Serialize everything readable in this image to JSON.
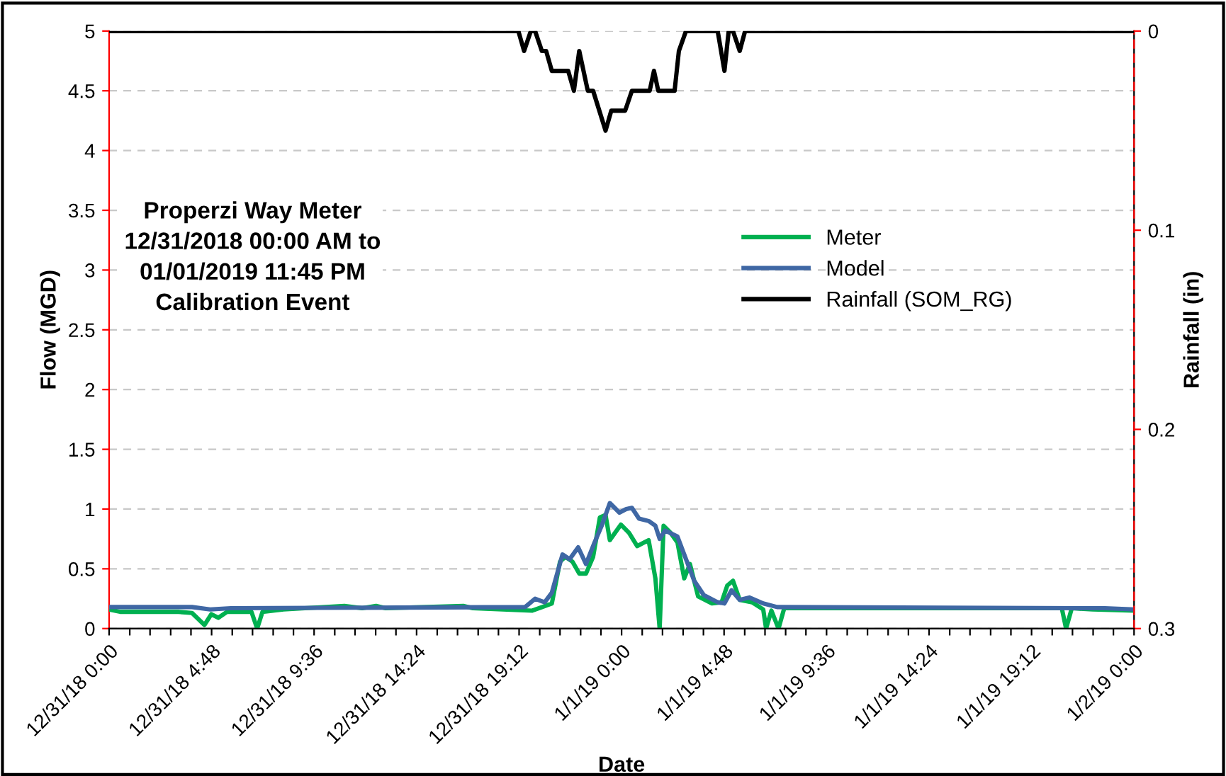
{
  "chart_data": {
    "type": "line",
    "xlabel": "Date",
    "ylabel": "Flow (MGD)",
    "y2label": "Rainfall (in)",
    "annotations": [
      "Properzi Way Meter\n12/31/2018 00:00 AM to\n01/01/2019 11:45 PM\nCalibration Event"
    ],
    "xlim": [
      "2018-12-31T00:00",
      "2019-01-02T00:00"
    ],
    "ylim": [
      0,
      5
    ],
    "yticks": [
      0,
      0.5,
      1,
      1.5,
      2,
      2.5,
      3,
      3.5,
      4,
      4.5,
      5
    ],
    "y2lim": [
      0.3,
      0
    ],
    "y2ticks": [
      0,
      0.1,
      0.2,
      0.3
    ],
    "xticks": [
      {
        "value": "2018-12-31T00:00",
        "label": "12/31/18 0:00"
      },
      {
        "value": "2018-12-31T00:58",
        "label": null
      },
      {
        "value": "2018-12-31T01:55",
        "label": null
      },
      {
        "value": "2018-12-31T02:53",
        "label": null
      },
      {
        "value": "2018-12-31T03:50",
        "label": null
      },
      {
        "value": "2018-12-31T04:48",
        "label": "12/31/18 4:48"
      },
      {
        "value": "2018-12-31T05:46",
        "label": null
      },
      {
        "value": "2018-12-31T06:43",
        "label": null
      },
      {
        "value": "2018-12-31T07:41",
        "label": null
      },
      {
        "value": "2018-12-31T08:38",
        "label": null
      },
      {
        "value": "2018-12-31T09:36",
        "label": "12/31/18 9:36"
      },
      {
        "value": "2018-12-31T10:34",
        "label": null
      },
      {
        "value": "2018-12-31T11:31",
        "label": null
      },
      {
        "value": "2018-12-31T12:29",
        "label": null
      },
      {
        "value": "2018-12-31T13:26",
        "label": null
      },
      {
        "value": "2018-12-31T14:24",
        "label": "12/31/18 14:24"
      },
      {
        "value": "2018-12-31T15:22",
        "label": null
      },
      {
        "value": "2018-12-31T16:19",
        "label": null
      },
      {
        "value": "2018-12-31T17:17",
        "label": null
      },
      {
        "value": "2018-12-31T18:14",
        "label": null
      },
      {
        "value": "2018-12-31T19:12",
        "label": "12/31/18 19:12"
      },
      {
        "value": "2018-12-31T20:10",
        "label": null
      },
      {
        "value": "2018-12-31T21:07",
        "label": null
      },
      {
        "value": "2018-12-31T22:05",
        "label": null
      },
      {
        "value": "2018-12-31T23:02",
        "label": null
      },
      {
        "value": "2019-01-01T00:00",
        "label": "1/1/19 0:00"
      },
      {
        "value": "2019-01-01T00:58",
        "label": null
      },
      {
        "value": "2019-01-01T01:55",
        "label": null
      },
      {
        "value": "2019-01-01T02:53",
        "label": null
      },
      {
        "value": "2019-01-01T03:50",
        "label": null
      },
      {
        "value": "2019-01-01T04:48",
        "label": "1/1/19 4:48"
      },
      {
        "value": "2019-01-01T05:46",
        "label": null
      },
      {
        "value": "2019-01-01T06:43",
        "label": null
      },
      {
        "value": "2019-01-01T07:41",
        "label": null
      },
      {
        "value": "2019-01-01T08:38",
        "label": null
      },
      {
        "value": "2019-01-01T09:36",
        "label": "1/1/19 9:36"
      },
      {
        "value": "2019-01-01T10:34",
        "label": null
      },
      {
        "value": "2019-01-01T11:31",
        "label": null
      },
      {
        "value": "2019-01-01T12:29",
        "label": null
      },
      {
        "value": "2019-01-01T13:26",
        "label": null
      },
      {
        "value": "2019-01-01T14:24",
        "label": "1/1/19 14:24"
      },
      {
        "value": "2019-01-01T15:22",
        "label": null
      },
      {
        "value": "2019-01-01T16:19",
        "label": null
      },
      {
        "value": "2019-01-01T17:17",
        "label": null
      },
      {
        "value": "2019-01-01T18:14",
        "label": null
      },
      {
        "value": "2019-01-01T19:12",
        "label": "1/1/19 19:12"
      },
      {
        "value": "2019-01-01T20:10",
        "label": null
      },
      {
        "value": "2019-01-01T21:07",
        "label": null
      },
      {
        "value": "2019-01-01T22:05",
        "label": null
      },
      {
        "value": "2019-01-01T23:02",
        "label": null
      },
      {
        "value": "2019-01-02T00:00",
        "label": "1/2/19 0:00"
      }
    ],
    "grid": "y",
    "legend": "right",
    "marker": "none",
    "line_style": "solid",
    "series": [
      {
        "name": "Meter",
        "color": "#00b050",
        "x": [
          "2018-12-31T00:00",
          "2018-12-31T00:31",
          "2018-12-31T03:14",
          "2018-12-31T03:53",
          "2018-12-31T04:28",
          "2018-12-31T04:47",
          "2018-12-31T05:07",
          "2018-12-31T05:31",
          "2018-12-31T06:40",
          "2018-12-31T06:56",
          "2018-12-31T07:11",
          "2018-12-31T08:10",
          "2018-12-31T11:01",
          "2018-12-31T11:51",
          "2018-12-31T12:30",
          "2018-12-31T12:57",
          "2018-12-31T16:35",
          "2018-12-31T17:02",
          "2018-12-31T19:49",
          "2018-12-31T20:44",
          "2018-12-31T21:07",
          "2018-12-31T21:22",
          "2018-12-31T21:42",
          "2018-12-31T22:01",
          "2018-12-31T22:20",
          "2018-12-31T22:40",
          "2018-12-31T22:59",
          "2018-12-31T23:15",
          "2018-12-31T23:27",
          "2018-12-31T23:58",
          "2019-01-01T00:21",
          "2019-01-01T00:44",
          "2019-01-01T01:16",
          "2019-01-01T01:35",
          "2019-01-01T01:47",
          "2019-01-01T01:58",
          "2019-01-01T02:18",
          "2019-01-01T02:37",
          "2019-01-01T02:56",
          "2019-01-01T03:12",
          "2019-01-01T03:35",
          "2019-01-01T04:14",
          "2019-01-01T04:41",
          "2019-01-01T04:57",
          "2019-01-01T05:13",
          "2019-01-01T05:32",
          "2019-01-01T06:07",
          "2019-01-01T06:38",
          "2019-01-01T06:46",
          "2019-01-01T07:01",
          "2019-01-01T07:21",
          "2019-01-01T07:37",
          "2019-01-01T20:37",
          "2019-01-01T20:49",
          "2019-01-01T21:05",
          "2019-01-01T22:03",
          "2019-01-02T00:00"
        ],
        "values": [
          0.16,
          0.14,
          0.14,
          0.13,
          0.03,
          0.12,
          0.09,
          0.14,
          0.14,
          0.0,
          0.14,
          0.16,
          0.19,
          0.17,
          0.19,
          0.17,
          0.19,
          0.17,
          0.15,
          0.21,
          0.56,
          0.6,
          0.56,
          0.46,
          0.46,
          0.6,
          0.93,
          0.95,
          0.74,
          0.87,
          0.8,
          0.69,
          0.74,
          0.42,
          0.0,
          0.86,
          0.8,
          0.72,
          0.42,
          0.54,
          0.27,
          0.21,
          0.22,
          0.36,
          0.4,
          0.24,
          0.22,
          0.16,
          0.0,
          0.15,
          0.0,
          0.17,
          0.17,
          0.0,
          0.17,
          0.16,
          0.15
        ]
      },
      {
        "name": "Model",
        "color": "#3f67a4",
        "x": [
          "2018-12-31T00:00",
          "2018-12-31T03:53",
          "2018-12-31T04:44",
          "2018-12-31T05:42",
          "2018-12-31T19:29",
          "2018-12-31T19:57",
          "2018-12-31T20:24",
          "2018-12-31T20:44",
          "2018-12-31T21:14",
          "2018-12-31T21:34",
          "2018-12-31T21:58",
          "2018-12-31T22:20",
          "2018-12-31T22:44",
          "2018-12-31T23:04",
          "2018-12-31T23:27",
          "2018-12-31T23:54",
          "2019-01-01T00:13",
          "2019-01-01T00:29",
          "2019-01-01T00:49",
          "2019-01-01T01:16",
          "2019-01-01T01:35",
          "2019-01-01T01:47",
          "2019-01-01T02:02",
          "2019-01-01T02:37",
          "2019-01-01T02:56",
          "2019-01-01T03:24",
          "2019-01-01T03:51",
          "2019-01-01T04:30",
          "2019-01-01T04:49",
          "2019-01-01T05:09",
          "2019-01-01T05:32",
          "2019-01-01T05:59",
          "2019-01-01T06:38",
          "2019-01-01T07:17",
          "2019-01-01T22:38",
          "2019-01-02T00:00"
        ],
        "values": [
          0.18,
          0.18,
          0.16,
          0.17,
          0.18,
          0.25,
          0.22,
          0.3,
          0.62,
          0.58,
          0.68,
          0.54,
          0.72,
          0.86,
          1.05,
          0.97,
          1.0,
          1.01,
          0.92,
          0.9,
          0.86,
          0.75,
          0.82,
          0.77,
          0.62,
          0.4,
          0.28,
          0.22,
          0.21,
          0.32,
          0.24,
          0.26,
          0.21,
          0.18,
          0.17,
          0.16
        ]
      },
      {
        "name": "Rainfall (SOM_RG)",
        "color": "#000000",
        "axis": "y2",
        "x": [
          "2018-12-31T00:00",
          "2018-12-31T19:10",
          "2018-12-31T19:26",
          "2018-12-31T19:45",
          "2018-12-31T19:57",
          "2018-12-31T20:16",
          "2018-12-31T20:28",
          "2018-12-31T20:44",
          "2018-12-31T21:30",
          "2018-12-31T21:46",
          "2018-12-31T22:01",
          "2018-12-31T22:25",
          "2018-12-31T22:40",
          "2018-12-31T23:15",
          "2018-12-31T23:31",
          "2019-01-01T00:10",
          "2019-01-01T00:29",
          "2019-01-01T01:19",
          "2019-01-01T01:31",
          "2019-01-01T01:43",
          "2019-01-01T02:29",
          "2019-01-01T02:41",
          "2019-01-01T03:01",
          "2019-01-01T04:30",
          "2019-01-01T04:49",
          "2019-01-01T05:01",
          "2019-01-01T05:13",
          "2019-01-01T05:32",
          "2019-01-01T05:47",
          "2019-01-02T00:00"
        ],
        "values": [
          0,
          0,
          0.01,
          0,
          0,
          0.01,
          0.01,
          0.02,
          0.02,
          0.03,
          0.01,
          0.03,
          0.03,
          0.05,
          0.04,
          0.04,
          0.03,
          0.03,
          0.02,
          0.03,
          0.03,
          0.01,
          0,
          0,
          0.02,
          0,
          0,
          0.01,
          0,
          0
        ]
      }
    ]
  }
}
